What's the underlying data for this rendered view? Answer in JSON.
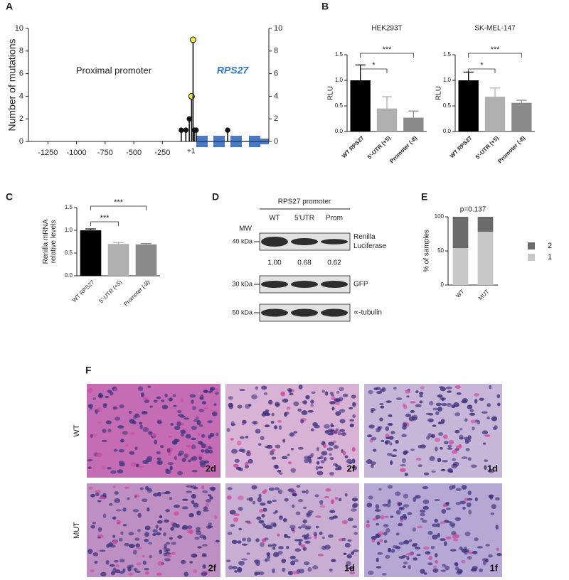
{
  "panel_labels": [
    "A",
    "B",
    "C",
    "D",
    "E",
    "F"
  ],
  "chart_data": [
    {
      "type": "lollipop",
      "ylabel": "Number of mutations",
      "annotations": [
        "Proximal promoter",
        "RPS27"
      ],
      "xlim": [
        -1420,
        680
      ],
      "xticks": [
        -1250,
        -1000,
        -750,
        -500,
        -250,
        {
          "value": 1,
          "label": "+1"
        }
      ],
      "ylim": [
        0,
        10
      ],
      "yticks": [
        0,
        2,
        4,
        6,
        8,
        10
      ],
      "y2lim": [
        0,
        10
      ],
      "y2ticks": [
        0,
        2,
        4,
        6,
        8,
        10
      ],
      "x": [
        -85,
        -45,
        -15,
        5,
        18,
        28,
        45,
        320
      ],
      "values": [
        1,
        1,
        2,
        4,
        9,
        1,
        1,
        1
      ],
      "colors": [
        "#111111",
        "#111111",
        "#111111",
        "#f2e640",
        "#f2e640",
        "#111111",
        "#111111",
        "#111111"
      ]
    },
    {
      "type": "bar",
      "title": "HEK293T",
      "ylabel": [
        "RLU"
      ],
      "categories": [
        "WT RPS27",
        "5'-UTR (+5)",
        "Promoter (-8)"
      ],
      "values": [
        1.0,
        0.45,
        0.27
      ],
      "errors": [
        0.3,
        0.23,
        0.13
      ],
      "colors": [
        "#000000",
        "#b0b0b0",
        "#8a8a8a"
      ],
      "ylim": [
        0,
        1.5
      ],
      "yticks": [
        {
          "value": 0,
          "label": "0.0"
        },
        {
          "value": 0.5,
          "label": "0.5"
        },
        {
          "value": 1,
          "label": "1.0"
        },
        {
          "value": 1.5,
          "label": "1.5"
        }
      ],
      "significance": [
        "*",
        "***"
      ]
    },
    {
      "type": "bar",
      "title": "SK-MEL-147",
      "ylabel": [
        "RLU"
      ],
      "categories": [
        "WT RPS27",
        "5'-UTR (+5)",
        "Promoter (-8)"
      ],
      "values": [
        1.0,
        0.68,
        0.56
      ],
      "errors": [
        0.16,
        0.17,
        0.05
      ],
      "colors": [
        "#000000",
        "#b0b0b0",
        "#8a8a8a"
      ],
      "ylim": [
        0,
        1.5
      ],
      "yticks": [
        {
          "value": 0,
          "label": "0.0"
        },
        {
          "value": 0.5,
          "label": "0.5"
        },
        {
          "value": 1,
          "label": "1.0"
        },
        {
          "value": 1.5,
          "label": "1.5"
        }
      ],
      "significance": [
        "*",
        "***"
      ]
    },
    {
      "type": "bar",
      "ylabel": [
        "Renilla mRNA",
        "relative levels"
      ],
      "categories": [
        "WT RPS27",
        "5'-UTR (+5)",
        "Promoter (-8)"
      ],
      "values": [
        1.0,
        0.7,
        0.69
      ],
      "errors": [
        0.03,
        0.03,
        0.02
      ],
      "colors": [
        "#000000",
        "#b0b0b0",
        "#8a8a8a"
      ],
      "ylim": [
        0,
        1.5
      ],
      "yticks": [
        {
          "value": 0,
          "label": "0.0"
        },
        {
          "value": 0.5,
          "label": "0.5"
        },
        {
          "value": 1,
          "label": "1.0"
        },
        {
          "value": 1.5,
          "label": "1.5"
        }
      ],
      "significance": [
        "***",
        "***"
      ]
    },
    {
      "type": "stacked_bar",
      "ylabel": [
        "% of samples"
      ],
      "annotation": "p=0.137",
      "categories": [
        "WT",
        "MUT"
      ],
      "series": [
        {
          "name": "1",
          "color": "#c8c8c8",
          "values": [
            54,
            78
          ]
        },
        {
          "name": "2",
          "color": "#6b6b6b",
          "values": [
            46,
            22
          ]
        }
      ],
      "ylim": [
        0,
        100
      ],
      "yticks": [
        0,
        50,
        100
      ]
    }
  ],
  "blot": {
    "title": "RPS27 promoter",
    "mw_header": "MW",
    "lanes": [
      "WT",
      "5'UTR",
      "Prom"
    ],
    "rows": [
      {
        "mw": "40 kDa",
        "label": [
          "Renilla",
          "Luciferase"
        ],
        "quant": [
          "1.00",
          "0.68",
          "0.62"
        ]
      },
      {
        "mw": "30 kDa",
        "label": [
          "GFP"
        ]
      },
      {
        "mw": "50 kDa",
        "label": [
          "∝-tubulin"
        ]
      }
    ]
  },
  "histology": {
    "row_labels": [
      "WT",
      "MUT"
    ],
    "samples": [
      [
        "2d",
        "2f",
        "1d"
      ],
      [
        "2f",
        "1d",
        "1f"
      ]
    ]
  }
}
